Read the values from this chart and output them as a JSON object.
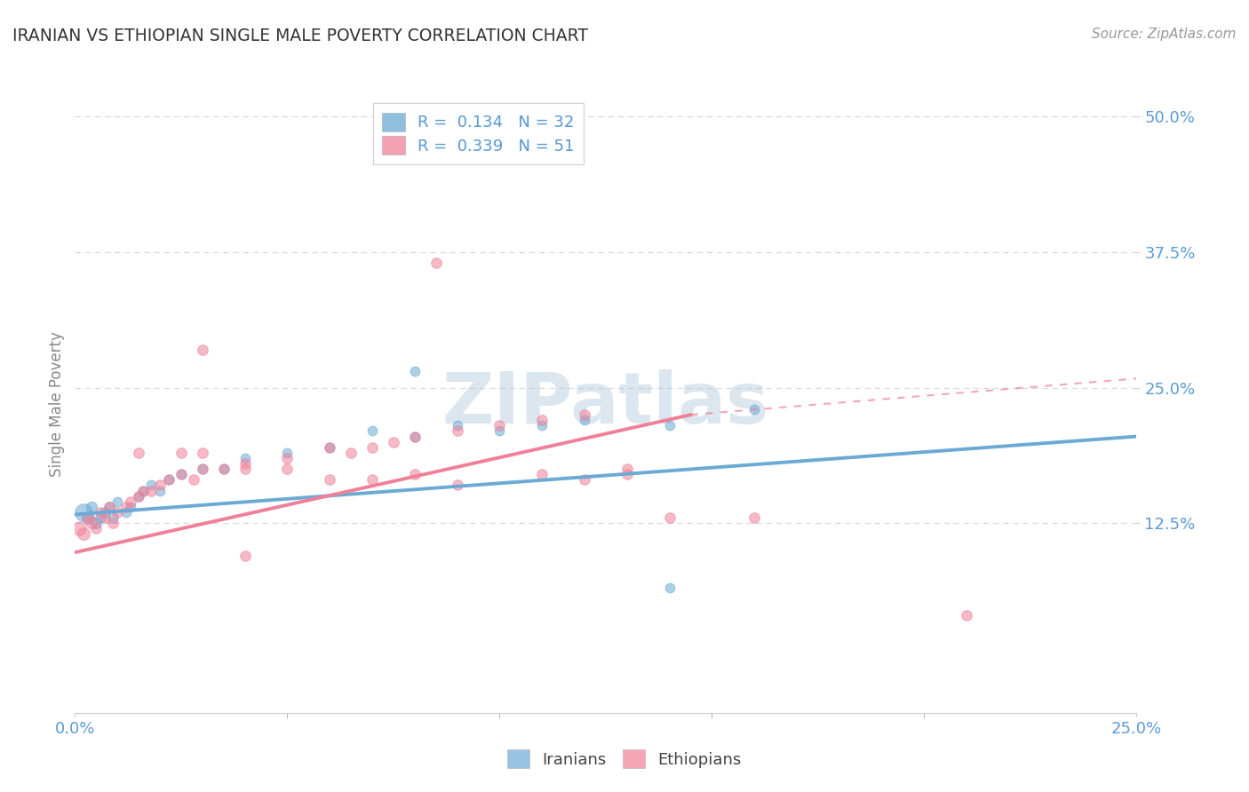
{
  "title": "IRANIAN VS ETHIOPIAN SINGLE MALE POVERTY CORRELATION CHART",
  "source_text": "Source: ZipAtlas.com",
  "xlim": [
    0.0,
    0.25
  ],
  "ylim": [
    -0.05,
    0.52
  ],
  "ylabel": "Single Male Poverty",
  "legend_line1": "R =  0.134   N = 32",
  "legend_line2": "R =  0.339   N = 51",
  "watermark_text": "ZIPatlas",
  "iranians_color": "#6aaad4",
  "ethiopians_color": "#f08098",
  "iranians_scatter": [
    [
      0.002,
      0.135
    ],
    [
      0.003,
      0.13
    ],
    [
      0.004,
      0.14
    ],
    [
      0.005,
      0.125
    ],
    [
      0.006,
      0.13
    ],
    [
      0.007,
      0.135
    ],
    [
      0.008,
      0.14
    ],
    [
      0.009,
      0.13
    ],
    [
      0.01,
      0.145
    ],
    [
      0.012,
      0.135
    ],
    [
      0.013,
      0.14
    ],
    [
      0.015,
      0.15
    ],
    [
      0.016,
      0.155
    ],
    [
      0.018,
      0.16
    ],
    [
      0.02,
      0.155
    ],
    [
      0.022,
      0.165
    ],
    [
      0.025,
      0.17
    ],
    [
      0.03,
      0.175
    ],
    [
      0.035,
      0.175
    ],
    [
      0.04,
      0.185
    ],
    [
      0.05,
      0.19
    ],
    [
      0.06,
      0.195
    ],
    [
      0.07,
      0.21
    ],
    [
      0.08,
      0.205
    ],
    [
      0.09,
      0.215
    ],
    [
      0.1,
      0.21
    ],
    [
      0.11,
      0.215
    ],
    [
      0.12,
      0.22
    ],
    [
      0.14,
      0.215
    ],
    [
      0.16,
      0.23
    ],
    [
      0.08,
      0.265
    ],
    [
      0.14,
      0.065
    ]
  ],
  "iranians_sizes": [
    200,
    100,
    80,
    80,
    70,
    70,
    70,
    70,
    60,
    60,
    60,
    60,
    60,
    60,
    60,
    60,
    60,
    60,
    60,
    60,
    60,
    60,
    60,
    60,
    60,
    60,
    60,
    60,
    60,
    60,
    60,
    60
  ],
  "ethiopians_scatter": [
    [
      0.001,
      0.12
    ],
    [
      0.002,
      0.115
    ],
    [
      0.003,
      0.13
    ],
    [
      0.004,
      0.125
    ],
    [
      0.005,
      0.12
    ],
    [
      0.006,
      0.135
    ],
    [
      0.007,
      0.13
    ],
    [
      0.008,
      0.14
    ],
    [
      0.009,
      0.125
    ],
    [
      0.01,
      0.135
    ],
    [
      0.012,
      0.14
    ],
    [
      0.013,
      0.145
    ],
    [
      0.015,
      0.15
    ],
    [
      0.016,
      0.155
    ],
    [
      0.018,
      0.155
    ],
    [
      0.02,
      0.16
    ],
    [
      0.022,
      0.165
    ],
    [
      0.025,
      0.17
    ],
    [
      0.028,
      0.165
    ],
    [
      0.03,
      0.175
    ],
    [
      0.035,
      0.175
    ],
    [
      0.04,
      0.18
    ],
    [
      0.05,
      0.185
    ],
    [
      0.06,
      0.195
    ],
    [
      0.065,
      0.19
    ],
    [
      0.07,
      0.195
    ],
    [
      0.075,
      0.2
    ],
    [
      0.08,
      0.205
    ],
    [
      0.09,
      0.21
    ],
    [
      0.1,
      0.215
    ],
    [
      0.11,
      0.22
    ],
    [
      0.12,
      0.225
    ],
    [
      0.13,
      0.175
    ],
    [
      0.14,
      0.13
    ],
    [
      0.015,
      0.19
    ],
    [
      0.025,
      0.19
    ],
    [
      0.03,
      0.19
    ],
    [
      0.04,
      0.175
    ],
    [
      0.05,
      0.175
    ],
    [
      0.06,
      0.165
    ],
    [
      0.07,
      0.165
    ],
    [
      0.08,
      0.17
    ],
    [
      0.09,
      0.16
    ],
    [
      0.11,
      0.17
    ],
    [
      0.12,
      0.165
    ],
    [
      0.13,
      0.17
    ],
    [
      0.085,
      0.365
    ],
    [
      0.16,
      0.13
    ],
    [
      0.21,
      0.04
    ],
    [
      0.03,
      0.285
    ],
    [
      0.04,
      0.095
    ]
  ],
  "ethiopians_sizes": [
    120,
    100,
    80,
    80,
    70,
    70,
    70,
    70,
    70,
    70,
    70,
    70,
    70,
    70,
    70,
    70,
    70,
    70,
    70,
    70,
    70,
    70,
    70,
    70,
    70,
    70,
    70,
    70,
    70,
    70,
    70,
    70,
    70,
    70,
    70,
    70,
    70,
    70,
    70,
    70,
    70,
    70,
    70,
    70,
    70,
    70,
    70,
    70,
    70,
    70,
    70
  ],
  "line_iranians": {
    "x0": 0.0,
    "x1": 0.25,
    "y0": 0.133,
    "y1": 0.205
  },
  "line_ethiopians_solid": {
    "x0": 0.0,
    "x1": 0.145,
    "y0": 0.098,
    "y1": 0.225
  },
  "line_ethiopians_dashed": {
    "x0": 0.145,
    "x1": 0.255,
    "y0": 0.225,
    "y1": 0.26
  },
  "background_color": "#ffffff",
  "grid_color": "#d8d8d8",
  "title_color": "#333333",
  "tick_label_color": "#5b9bd5",
  "ylabel_color": "#888888"
}
